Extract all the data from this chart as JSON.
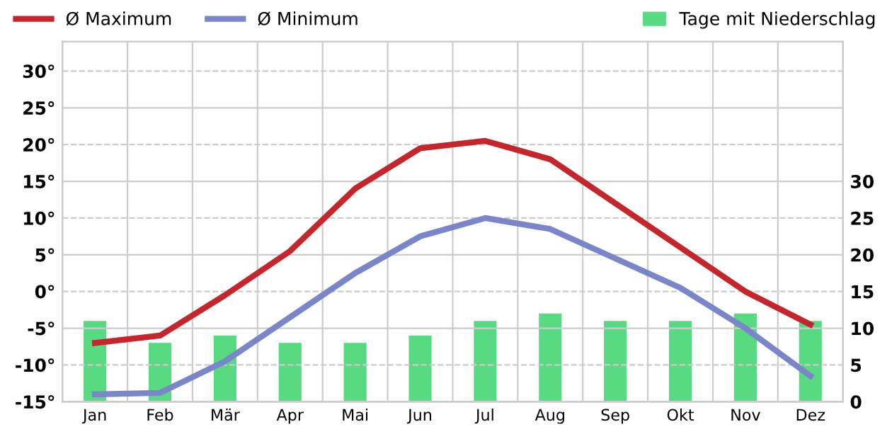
{
  "chart_data": {
    "type": "line",
    "categories": [
      "Jan",
      "Feb",
      "Mär",
      "Apr",
      "Mai",
      "Jun",
      "Jul",
      "Aug",
      "Sep",
      "Okt",
      "Nov",
      "Dez"
    ],
    "series": [
      {
        "name": "Ø Maximum",
        "color": "#c1272d",
        "values": [
          -7,
          -6,
          -0.5,
          5.5,
          14,
          19.5,
          20.5,
          18,
          12,
          6,
          0,
          -4.5
        ]
      },
      {
        "name": "Ø Minimum",
        "color": "#7b86c8",
        "values": [
          -14,
          -13.8,
          -9.5,
          -3.5,
          2.5,
          7.5,
          10,
          8.5,
          4.5,
          0.5,
          -5,
          -11.5
        ]
      },
      {
        "name": "Tage mit Niederschlag",
        "color": "#5ad983",
        "type": "bar",
        "axis": "y2",
        "values": [
          11,
          8,
          9,
          8,
          8,
          9,
          11,
          12,
          11,
          11,
          12,
          11
        ]
      }
    ],
    "ylim": [
      -15,
      34
    ],
    "yticks": [
      {
        "value": -15,
        "label": "-15°"
      },
      {
        "value": -10,
        "label": "-10°"
      },
      {
        "value": -5,
        "label": "-5°"
      },
      {
        "value": 0,
        "label": "0°"
      },
      {
        "value": 5,
        "label": "5°"
      },
      {
        "value": 10,
        "label": "10°"
      },
      {
        "value": 15,
        "label": "15°"
      },
      {
        "value": 20,
        "label": "20°"
      },
      {
        "value": 25,
        "label": "25°"
      },
      {
        "value": 30,
        "label": "30°"
      }
    ],
    "y2lim": [
      0,
      49
    ],
    "y2ticks": [
      0,
      5,
      10,
      15,
      20,
      25,
      30
    ],
    "grid": true,
    "legend": "top",
    "marker": "none"
  }
}
